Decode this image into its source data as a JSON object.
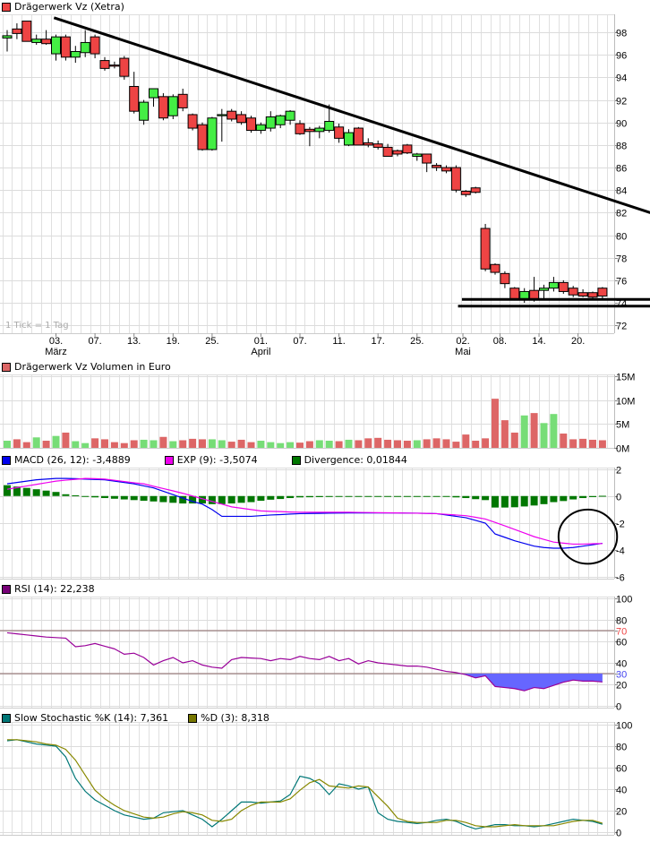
{
  "chart_data": [
    {
      "type": "candlestick",
      "title": "Drägerwerk Vz (Xetra)",
      "title_color": "#ee4444",
      "note": "1 Tick = 1 Tag",
      "ylim": [
        71.3,
        99.6
      ],
      "yticks": [
        72,
        74,
        76,
        78,
        80,
        82,
        84,
        86,
        88,
        90,
        92,
        94,
        96,
        98
      ],
      "up_color": "#44ee44",
      "down_color": "#ee4444",
      "xticks": [
        {
          "index": 5,
          "label": "03.",
          "month": "März"
        },
        {
          "index": 9,
          "label": "07."
        },
        {
          "index": 13,
          "label": "13."
        },
        {
          "index": 17,
          "label": "19."
        },
        {
          "index": 21,
          "label": "25."
        },
        {
          "index": 26,
          "label": "01.",
          "month": "April"
        },
        {
          "index": 30,
          "label": "07."
        },
        {
          "index": 34,
          "label": "11."
        },
        {
          "index": 38,
          "label": "17."
        },
        {
          "index": 42,
          "label": "25."
        },
        {
          "index": 46.7,
          "label": "02.",
          "month": "Mai"
        },
        {
          "index": 50.5,
          "label": "08."
        },
        {
          "index": 54.5,
          "label": "14."
        },
        {
          "index": 58.5,
          "label": "20."
        }
      ],
      "ohlc": [
        [
          97.5,
          98.2,
          96.3,
          97.7
        ],
        [
          98.3,
          98.8,
          97.4,
          97.9
        ],
        [
          99.0,
          99.0,
          97.2,
          97.2
        ],
        [
          97.1,
          97.8,
          96.9,
          97.4
        ],
        [
          97.4,
          98.2,
          96.9,
          97.0
        ],
        [
          96.1,
          97.8,
          95.5,
          97.6
        ],
        [
          97.6,
          97.8,
          95.5,
          95.8
        ],
        [
          95.8,
          96.8,
          95.3,
          96.3
        ],
        [
          96.2,
          98.2,
          95.8,
          97.1
        ],
        [
          97.6,
          97.8,
          95.7,
          96.1
        ],
        [
          95.5,
          95.8,
          94.6,
          94.8
        ],
        [
          95.1,
          95.4,
          94.8,
          95.0
        ],
        [
          95.7,
          95.9,
          93.8,
          94.1
        ],
        [
          93.2,
          94.5,
          90.8,
          91.0
        ],
        [
          90.2,
          92.0,
          89.8,
          91.8
        ],
        [
          92.2,
          93.0,
          91.4,
          93.0
        ],
        [
          92.3,
          92.6,
          90.2,
          90.4
        ],
        [
          90.6,
          92.5,
          90.3,
          92.3
        ],
        [
          92.5,
          93.0,
          91.0,
          91.3
        ],
        [
          90.7,
          90.8,
          89.3,
          89.5
        ],
        [
          89.8,
          90.0,
          87.5,
          87.6
        ],
        [
          87.6,
          90.5,
          87.5,
          90.4
        ],
        [
          90.6,
          91.2,
          88.3,
          90.7
        ],
        [
          91.0,
          91.2,
          90.1,
          90.3
        ],
        [
          90.7,
          91.0,
          89.8,
          90.0
        ],
        [
          90.4,
          90.6,
          89.1,
          89.3
        ],
        [
          89.3,
          90.0,
          89.0,
          89.8
        ],
        [
          89.5,
          91.0,
          89.2,
          90.5
        ],
        [
          89.8,
          90.7,
          89.5,
          90.6
        ],
        [
          90.2,
          91.1,
          89.8,
          91.0
        ],
        [
          89.9,
          90.2,
          88.9,
          89.0
        ],
        [
          89.4,
          89.6,
          87.9,
          89.2
        ],
        [
          89.2,
          89.7,
          88.6,
          89.5
        ],
        [
          89.3,
          91.6,
          89.1,
          90.1
        ],
        [
          89.6,
          89.9,
          88.2,
          88.6
        ],
        [
          88.0,
          89.4,
          87.9,
          89.1
        ],
        [
          89.5,
          89.6,
          88.0,
          88.0
        ],
        [
          88.2,
          88.6,
          87.8,
          88.0
        ],
        [
          88.1,
          88.4,
          87.6,
          87.8
        ],
        [
          87.8,
          88.1,
          87.0,
          87.0
        ],
        [
          87.5,
          87.6,
          87.0,
          87.2
        ],
        [
          88.0,
          88.1,
          87.2,
          87.3
        ],
        [
          87.0,
          87.3,
          86.6,
          87.2
        ],
        [
          87.2,
          87.2,
          85.6,
          86.4
        ],
        [
          86.2,
          86.4,
          85.7,
          86.0
        ],
        [
          86.0,
          86.2,
          85.5,
          85.7
        ],
        [
          86.0,
          86.2,
          83.8,
          84.0
        ],
        [
          83.9,
          84.0,
          83.4,
          83.6
        ],
        [
          84.2,
          84.3,
          83.7,
          83.8
        ],
        [
          80.6,
          81.0,
          76.8,
          77.0
        ],
        [
          77.4,
          77.5,
          76.5,
          76.7
        ],
        [
          76.6,
          76.8,
          75.3,
          75.7
        ],
        [
          75.3,
          75.4,
          74.2,
          74.3
        ],
        [
          74.3,
          75.3,
          74.0,
          75.0
        ],
        [
          75.1,
          76.3,
          74.1,
          74.3
        ],
        [
          75.1,
          75.6,
          74.4,
          75.3
        ],
        [
          75.3,
          76.3,
          75.0,
          75.8
        ],
        [
          75.8,
          76.0,
          74.8,
          75.0
        ],
        [
          75.3,
          75.5,
          74.5,
          74.7
        ],
        [
          74.9,
          75.2,
          74.5,
          74.6
        ],
        [
          74.9,
          75.0,
          74.4,
          74.5
        ],
        [
          75.3,
          75.4,
          74.4,
          74.6
        ]
      ],
      "annotations": {
        "trendline": {
          "from": [
            4.8,
            99.3
          ],
          "to": [
            65.9,
            82.0
          ]
        },
        "support_lines": [
          {
            "from_index": 46.6,
            "value": 74.3
          },
          {
            "from_index": 46.2,
            "value": 73.7
          }
        ]
      }
    },
    {
      "type": "bar",
      "title": "Drägerwerk Vz Volumen in Euro",
      "title_color": "#dd6666",
      "unit": "M",
      "ylim": [
        0,
        15.4
      ],
      "yticks": [
        {
          "v": 0,
          "label": "0M"
        },
        {
          "v": 5,
          "label": "5M"
        },
        {
          "v": 10,
          "label": "10M"
        },
        {
          "v": 15,
          "label": "15M"
        }
      ],
      "up_color": "#77dd77",
      "down_color": "#dd6666",
      "values": [
        1.5,
        1.8,
        1.2,
        2.2,
        1.5,
        2.5,
        3.2,
        1.4,
        1.0,
        2.0,
        1.8,
        1.2,
        1.0,
        1.6,
        1.7,
        1.6,
        2.3,
        1.4,
        1.6,
        1.9,
        1.8,
        1.8,
        1.6,
        1.3,
        1.7,
        1.2,
        1.5,
        1.2,
        1.0,
        1.2,
        1.1,
        1.4,
        1.6,
        1.5,
        1.4,
        1.7,
        1.6,
        2.0,
        2.1,
        1.7,
        1.6,
        1.5,
        1.6,
        1.8,
        2.0,
        1.8,
        1.3,
        2.8,
        1.5,
        2.0,
        10.3,
        5.8,
        3.2,
        6.8,
        7.3,
        5.2,
        7.1,
        3.0,
        1.8,
        1.9,
        1.7,
        1.6
      ]
    },
    {
      "type": "line",
      "ylim": [
        -6.1,
        2.1
      ],
      "yticks": [
        -6,
        -4,
        -2,
        0,
        2
      ],
      "legend": [
        {
          "label": "MACD (26, 12): -3,4889",
          "color": "#0000ee"
        },
        {
          "label": "EXP (9): -3,5074",
          "color": "#ee00ee"
        },
        {
          "label": "Divergence: 0,01844",
          "color": "#007700"
        }
      ],
      "series": [
        {
          "name": "MACD (26, 12)",
          "color": "#0000ee",
          "values": [
            0.9,
            1.0,
            1.1,
            1.2,
            1.25,
            1.3,
            1.3,
            1.28,
            1.25,
            1.22,
            1.2,
            1.1,
            1.0,
            0.9,
            0.75,
            0.6,
            0.35,
            0.1,
            -0.15,
            -0.4,
            -0.6,
            -1.0,
            -1.5,
            -1.5,
            -1.5,
            -1.5,
            -1.45,
            -1.4,
            -1.37,
            -1.33,
            -1.3,
            -1.29,
            -1.28,
            -1.27,
            -1.26,
            -1.25,
            -1.25,
            -1.25,
            -1.25,
            -1.25,
            -1.25,
            -1.26,
            -1.27,
            -1.28,
            -1.3,
            -1.4,
            -1.5,
            -1.6,
            -1.8,
            -2.0,
            -2.8,
            -3.05,
            -3.3,
            -3.5,
            -3.7,
            -3.8,
            -3.85,
            -3.85,
            -3.8,
            -3.7,
            -3.6,
            -3.49
          ]
        },
        {
          "name": "EXP (9)",
          "color": "#ee00ee",
          "values": [
            0.5,
            0.62,
            0.74,
            0.86,
            0.98,
            1.1,
            1.17,
            1.23,
            1.3,
            1.28,
            1.25,
            1.16,
            1.07,
            0.98,
            0.9,
            0.72,
            0.55,
            0.38,
            0.2,
            0.0,
            -0.2,
            -0.4,
            -0.6,
            -0.8,
            -0.9,
            -1.0,
            -1.1,
            -1.13,
            -1.15,
            -1.18,
            -1.2,
            -1.2,
            -1.2,
            -1.2,
            -1.2,
            -1.2,
            -1.21,
            -1.22,
            -1.23,
            -1.24,
            -1.25,
            -1.26,
            -1.27,
            -1.28,
            -1.3,
            -1.35,
            -1.4,
            -1.45,
            -1.57,
            -1.7,
            -1.95,
            -2.2,
            -2.47,
            -2.73,
            -3.0,
            -3.2,
            -3.4,
            -3.48,
            -3.55,
            -3.55,
            -3.52,
            -3.51
          ]
        },
        {
          "name": "Divergence",
          "color": "#007700",
          "type": "bar",
          "values": [
            0.8,
            0.7,
            0.6,
            0.5,
            0.4,
            0.3,
            0.13,
            0.05,
            -0.05,
            -0.1,
            -0.15,
            -0.2,
            -0.25,
            -0.3,
            -0.35,
            -0.4,
            -0.45,
            -0.5,
            -0.55,
            -0.55,
            -0.55,
            -0.6,
            -0.6,
            -0.55,
            -0.5,
            -0.45,
            -0.35,
            -0.27,
            -0.22,
            -0.15,
            -0.1,
            -0.09,
            -0.08,
            -0.07,
            -0.06,
            -0.05,
            -0.04,
            -0.03,
            -0.02,
            -0.01,
            0.0,
            0.0,
            0.0,
            0.0,
            0.0,
            -0.05,
            -0.1,
            -0.15,
            -0.23,
            -0.3,
            -0.85,
            -0.85,
            -0.83,
            -0.77,
            -0.7,
            -0.6,
            -0.45,
            -0.37,
            -0.25,
            -0.15,
            -0.08,
            0.018
          ]
        }
      ],
      "annotations": {
        "circle": {
          "center": [
            59.5,
            -3.0
          ],
          "rx_bars": 3,
          "ry_units": 2.0
        }
      }
    },
    {
      "type": "line",
      "title": "RSI (14): 22,238",
      "title_color": "#770077",
      "ylim": [
        -1.7,
        101.7
      ],
      "yticks": [
        {
          "v": 0,
          "label": "0",
          "color": "#000"
        },
        {
          "v": 20,
          "label": "20",
          "color": "#000"
        },
        {
          "v": 30,
          "label": "30",
          "color": "#4444ee"
        },
        {
          "v": 40,
          "label": "40",
          "color": "#000"
        },
        {
          "v": 60,
          "label": "60",
          "color": "#000"
        },
        {
          "v": 70,
          "label": "70",
          "color": "#ee4444"
        },
        {
          "v": 80,
          "label": "80",
          "color": "#000"
        },
        {
          "v": 100,
          "label": "100",
          "color": "#000"
        }
      ],
      "levels": [
        70,
        30
      ],
      "fill_below": {
        "level": 30,
        "color": "#6666ff"
      },
      "series": [
        {
          "name": "RSI (14)",
          "color": "#990099",
          "values": [
            68,
            67,
            66,
            65,
            64,
            63.5,
            63,
            55,
            56,
            58,
            55.5,
            53,
            48,
            49,
            45,
            38,
            42,
            45,
            40,
            42,
            38,
            36,
            35,
            43,
            45,
            44.5,
            44,
            42,
            44,
            43,
            46,
            44,
            43,
            46,
            42,
            44,
            39,
            42,
            40,
            39,
            38,
            37,
            37,
            36,
            34,
            32,
            31,
            29,
            26,
            28,
            18,
            17,
            16,
            14,
            17,
            16,
            19,
            22,
            24,
            23,
            23,
            22.238
          ]
        }
      ]
    },
    {
      "type": "line",
      "ylim": [
        -2.5,
        102.5
      ],
      "yticks": [
        0,
        20,
        40,
        60,
        80,
        100
      ],
      "legend": [
        {
          "label": "Slow Stochastic %K (14): 7,361",
          "color": "#007777"
        },
        {
          "label": "%D (3): 8,318",
          "color": "#777700"
        }
      ],
      "series": [
        {
          "name": "Slow Stochastic %K (14)",
          "color": "#007777",
          "values": [
            85,
            86,
            84,
            82,
            81,
            80,
            70,
            50,
            38,
            30,
            25,
            20,
            16,
            14,
            12,
            13,
            18,
            19,
            20,
            16,
            12,
            5,
            12,
            20,
            28,
            28,
            27,
            28,
            29,
            35,
            52,
            50,
            45,
            35,
            45,
            43,
            40,
            42,
            18,
            12,
            10,
            9,
            8,
            9,
            11,
            12,
            10,
            6,
            3,
            5,
            7,
            7,
            6,
            6,
            5,
            6,
            8,
            10,
            12,
            11,
            10,
            7.361
          ]
        },
        {
          "name": "%D (3)",
          "color": "#888800",
          "values": [
            86,
            86,
            85,
            84,
            82,
            81,
            77,
            67,
            53,
            39,
            31,
            25,
            20,
            17,
            14,
            13,
            14,
            17,
            19,
            18,
            16,
            11,
            10,
            12,
            20,
            25,
            28,
            28,
            28,
            31,
            39,
            46,
            49,
            43,
            42,
            41,
            43,
            42,
            33,
            24,
            13,
            10,
            9,
            9,
            9,
            11,
            11,
            9,
            6,
            5,
            5,
            6,
            7,
            6,
            6,
            6,
            6,
            8,
            10,
            11,
            11,
            8.318
          ]
        }
      ]
    }
  ]
}
